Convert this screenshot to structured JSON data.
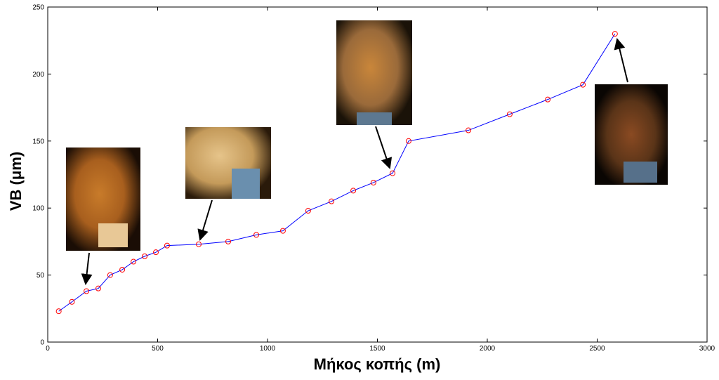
{
  "chart_data": {
    "type": "line",
    "x_label": "Μήκος κοπής (m)",
    "y_label": "VB (μm)",
    "series": [
      {
        "color": "#0000ff",
        "marker_color": "#ff0000",
        "x": [
          50,
          110,
          176,
          230,
          284,
          339,
          390,
          441,
          492,
          543,
          687,
          821,
          949,
          1070,
          1185,
          1291,
          1390,
          1482,
          1569,
          1642,
          1914,
          2102,
          2275,
          2435,
          2581
        ],
        "values": [
          23,
          30,
          38,
          40,
          50,
          54,
          60,
          64,
          67,
          72,
          73,
          75,
          80,
          83,
          98,
          105,
          113,
          119,
          126,
          150,
          158,
          170,
          181,
          192,
          230
        ]
      }
    ],
    "xlim": [
      0,
      3000
    ],
    "xticks": [
      0,
      500,
      1000,
      1500,
      2000,
      2500,
      3000
    ],
    "ylim": [
      0,
      250
    ],
    "yticks": [
      0,
      50,
      100,
      150,
      200,
      250
    ]
  }
}
